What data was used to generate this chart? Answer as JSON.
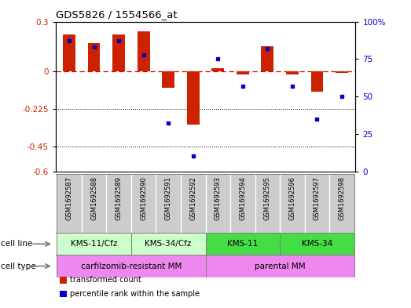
{
  "title": "GDS5826 / 1554566_at",
  "samples": [
    "GSM1692587",
    "GSM1692588",
    "GSM1692589",
    "GSM1692590",
    "GSM1692591",
    "GSM1692592",
    "GSM1692593",
    "GSM1692594",
    "GSM1692595",
    "GSM1692596",
    "GSM1692597",
    "GSM1692598"
  ],
  "transformed_count": [
    0.22,
    0.17,
    0.22,
    0.24,
    -0.1,
    -0.32,
    0.02,
    -0.02,
    0.15,
    -0.02,
    -0.12,
    -0.01
  ],
  "percentile_rank": [
    87,
    83,
    87,
    78,
    32,
    10,
    75,
    57,
    82,
    57,
    35,
    50
  ],
  "cell_line_groups": [
    {
      "label": "KMS-11/Cfz",
      "start": 0,
      "end": 2,
      "color": "#ccffcc"
    },
    {
      "label": "KMS-34/Cfz",
      "start": 3,
      "end": 5,
      "color": "#ccffcc"
    },
    {
      "label": "KMS-11",
      "start": 6,
      "end": 8,
      "color": "#44dd44"
    },
    {
      "label": "KMS-34",
      "start": 9,
      "end": 11,
      "color": "#44dd44"
    }
  ],
  "cell_type_groups": [
    {
      "label": "carfilzomib-resistant MM",
      "start": 0,
      "end": 5,
      "color": "#ee88ee"
    },
    {
      "label": "parental MM",
      "start": 6,
      "end": 11,
      "color": "#ee88ee"
    }
  ],
  "ylim_left": [
    -0.6,
    0.3
  ],
  "ylim_right": [
    0,
    100
  ],
  "yticks_left": [
    0.3,
    0.0,
    -0.225,
    -0.45,
    -0.6
  ],
  "ytick_labels_left": [
    "0.3",
    "0",
    "-0.225",
    "-0.45",
    "-0.6"
  ],
  "yticks_right": [
    100,
    75,
    50,
    25,
    0
  ],
  "ytick_labels_right": [
    "100%",
    "75",
    "50",
    "25",
    "0"
  ],
  "bar_color_red": "#cc2200",
  "bar_color_blue": "#0000cc",
  "bar_width": 0.5,
  "dotted_lines": [
    -0.225,
    -0.45
  ],
  "sample_bg_color": "#cccccc",
  "legend_items": [
    {
      "label": "transformed count",
      "color": "#cc2200"
    },
    {
      "label": "percentile rank within the sample",
      "color": "#0000cc"
    }
  ]
}
